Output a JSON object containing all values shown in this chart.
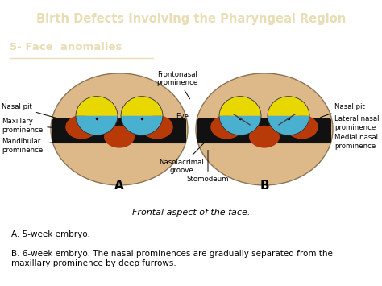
{
  "title": "Birth Defects Involving the Pharyngeal Region",
  "subtitle": "5- Face  anomalies",
  "header_bg": "#4d4d28",
  "header_text_color": "#e8ddb5",
  "body_bg": "#e8ddb5",
  "white_bg": "#ffffff",
  "skin_color": "#ddb98a",
  "dark_strip": "#111111",
  "blue_color": "#4ab0d0",
  "yellow_color": "#e8d800",
  "orange_color": "#b83a08",
  "caption": "Frontal aspect of the face.",
  "note_a": "A. 5-week embryo.",
  "note_b": "B. 6-week embryo. The nasal prominences are gradually separated from the\nmaxillary prominence by deep furrows."
}
